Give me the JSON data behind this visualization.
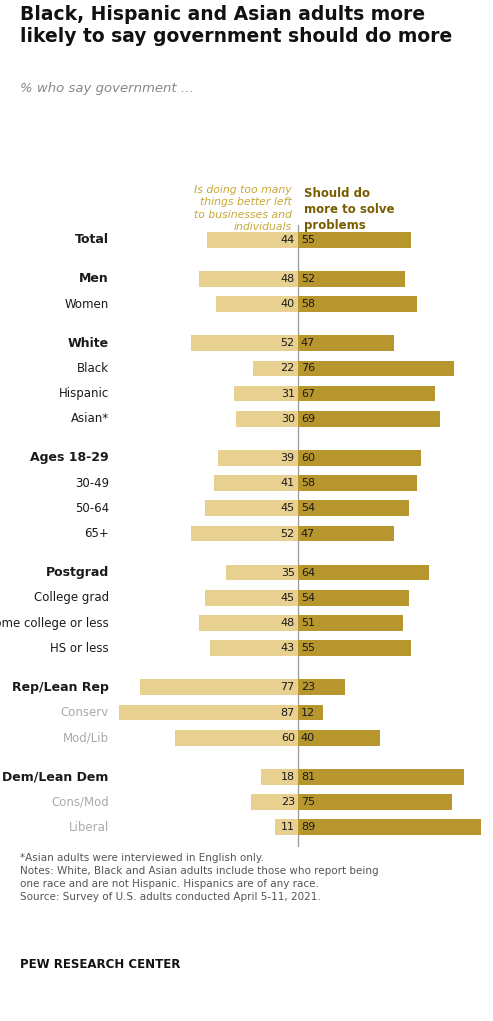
{
  "title": "Black, Hispanic and Asian adults more\nlikely to say government should do more",
  "subtitle": "% who say government ...",
  "col1_header": "Is doing too many\nthings better left\nto businesses and\nindividuals",
  "col2_header": "Should do\nmore to solve\nproblems",
  "categories": [
    "Total",
    "Men",
    "Women",
    "White",
    "Black",
    "Hispanic",
    "Asian*",
    "Ages 18-29",
    "30-49",
    "50-64",
    "65+",
    "Postgrad",
    "College grad",
    "Some college or less",
    "HS or less",
    "Rep/Lean Rep",
    "Conserv",
    "Mod/Lib",
    "Dem/Lean Dem",
    "Cons/Mod",
    "Liberal"
  ],
  "values_left": [
    44,
    48,
    40,
    52,
    22,
    31,
    30,
    39,
    41,
    45,
    52,
    35,
    45,
    48,
    43,
    77,
    87,
    60,
    18,
    23,
    11
  ],
  "values_right": [
    55,
    52,
    58,
    47,
    76,
    67,
    69,
    60,
    58,
    54,
    47,
    64,
    54,
    51,
    55,
    23,
    12,
    40,
    81,
    75,
    89
  ],
  "color_left": "#e8d090",
  "color_right": "#b8962e",
  "bold_rows": [
    0,
    1,
    3,
    7,
    11,
    15,
    18
  ],
  "gray_rows": [
    16,
    17,
    19,
    20
  ],
  "groups": [
    [
      0
    ],
    [
      1,
      2
    ],
    [
      3,
      4,
      5,
      6
    ],
    [
      7,
      8,
      9,
      10
    ],
    [
      11,
      12,
      13,
      14
    ],
    [
      15,
      16,
      17
    ],
    [
      18,
      19,
      20
    ]
  ],
  "footnote": "*Asian adults were interviewed in English only.\nNotes: White, Black and Asian adults include those who report being\none race and are not Hispanic. Hispanics are of any race.\nSource: Survey of U.S. adults conducted April 5-11, 2021.",
  "source": "PEW RESEARCH CENTER",
  "col1_header_color": "#c8a838",
  "col2_header_color": "#7a5c00"
}
